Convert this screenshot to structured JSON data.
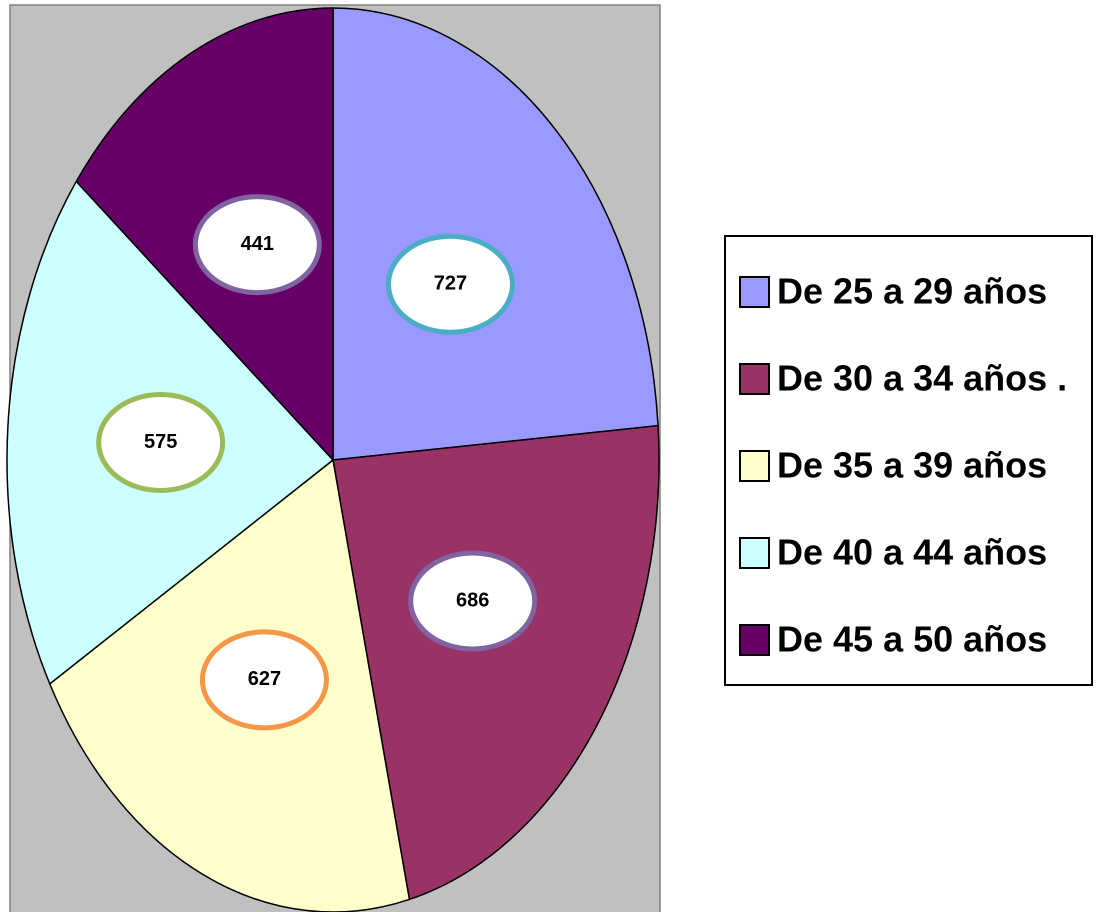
{
  "chart_data": {
    "type": "pie",
    "categories": [
      "De 25 a 29 años",
      "De 30 a 34 años .",
      "De 35 a 39 años",
      "De 40 a 44 años",
      "De 45 a 50 años"
    ],
    "values": [
      727,
      686,
      627,
      575,
      441
    ],
    "colors": [
      "#9999ff",
      "#993366",
      "#ffffcc",
      "#ccffff",
      "#660066"
    ],
    "label_border_colors": [
      "#4bacc6",
      "#8064a2",
      "#f79646",
      "#9bbb59",
      "#8064a2"
    ],
    "legend": "right"
  }
}
